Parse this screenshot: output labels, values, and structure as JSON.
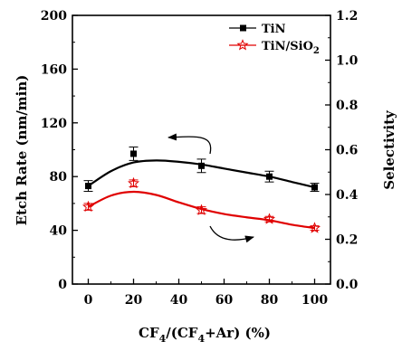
{
  "chart_data": {
    "type": "line",
    "x": [
      0,
      20,
      50,
      80,
      100
    ],
    "xlabel_parts": [
      "CF",
      "4",
      "/(CF",
      "4",
      "+Ar) (%)"
    ],
    "ylabel": "Etch Rate (nm/min)",
    "y2label": "Selectivity",
    "xlim": [
      -7,
      107
    ],
    "ylim": [
      0,
      200
    ],
    "y2lim": [
      0.0,
      1.2
    ],
    "x_ticks": [
      0,
      20,
      40,
      60,
      80,
      100
    ],
    "y_ticks": [
      0,
      40,
      80,
      120,
      160,
      200
    ],
    "y2_ticks": [
      "0.0",
      "0.2",
      "0.4",
      "0.6",
      "0.8",
      "1.0",
      "1.2"
    ],
    "series": [
      {
        "name": "TiN",
        "axis": "left",
        "color": "#000000",
        "marker": "filled-square",
        "values": [
          73,
          97,
          88,
          80,
          72
        ],
        "errors": [
          4,
          5,
          5,
          4,
          3
        ],
        "fit": [
          [
            0,
            73
          ],
          [
            10,
            84
          ],
          [
            20,
            90.5
          ],
          [
            30,
            92
          ],
          [
            40,
            91
          ],
          [
            50,
            89
          ],
          [
            60,
            86
          ],
          [
            70,
            83
          ],
          [
            80,
            80
          ],
          [
            90,
            76
          ],
          [
            100,
            72
          ]
        ]
      },
      {
        "name_parts": [
          "TiN/SiO",
          "2"
        ],
        "axis": "right",
        "color": "#e00000",
        "marker": "open-star",
        "values": [
          0.345,
          0.45,
          0.33,
          0.29,
          0.25
        ],
        "errors": [
          0.015,
          0.015,
          0.015,
          0.012,
          0.01
        ],
        "fit": [
          [
            0,
            0.345
          ],
          [
            10,
            0.395
          ],
          [
            20,
            0.412
          ],
          [
            30,
            0.398
          ],
          [
            40,
            0.365
          ],
          [
            50,
            0.335
          ],
          [
            60,
            0.313
          ],
          [
            70,
            0.298
          ],
          [
            80,
            0.285
          ],
          [
            90,
            0.265
          ],
          [
            100,
            0.25
          ]
        ]
      }
    ],
    "legend_position": "top-right"
  }
}
